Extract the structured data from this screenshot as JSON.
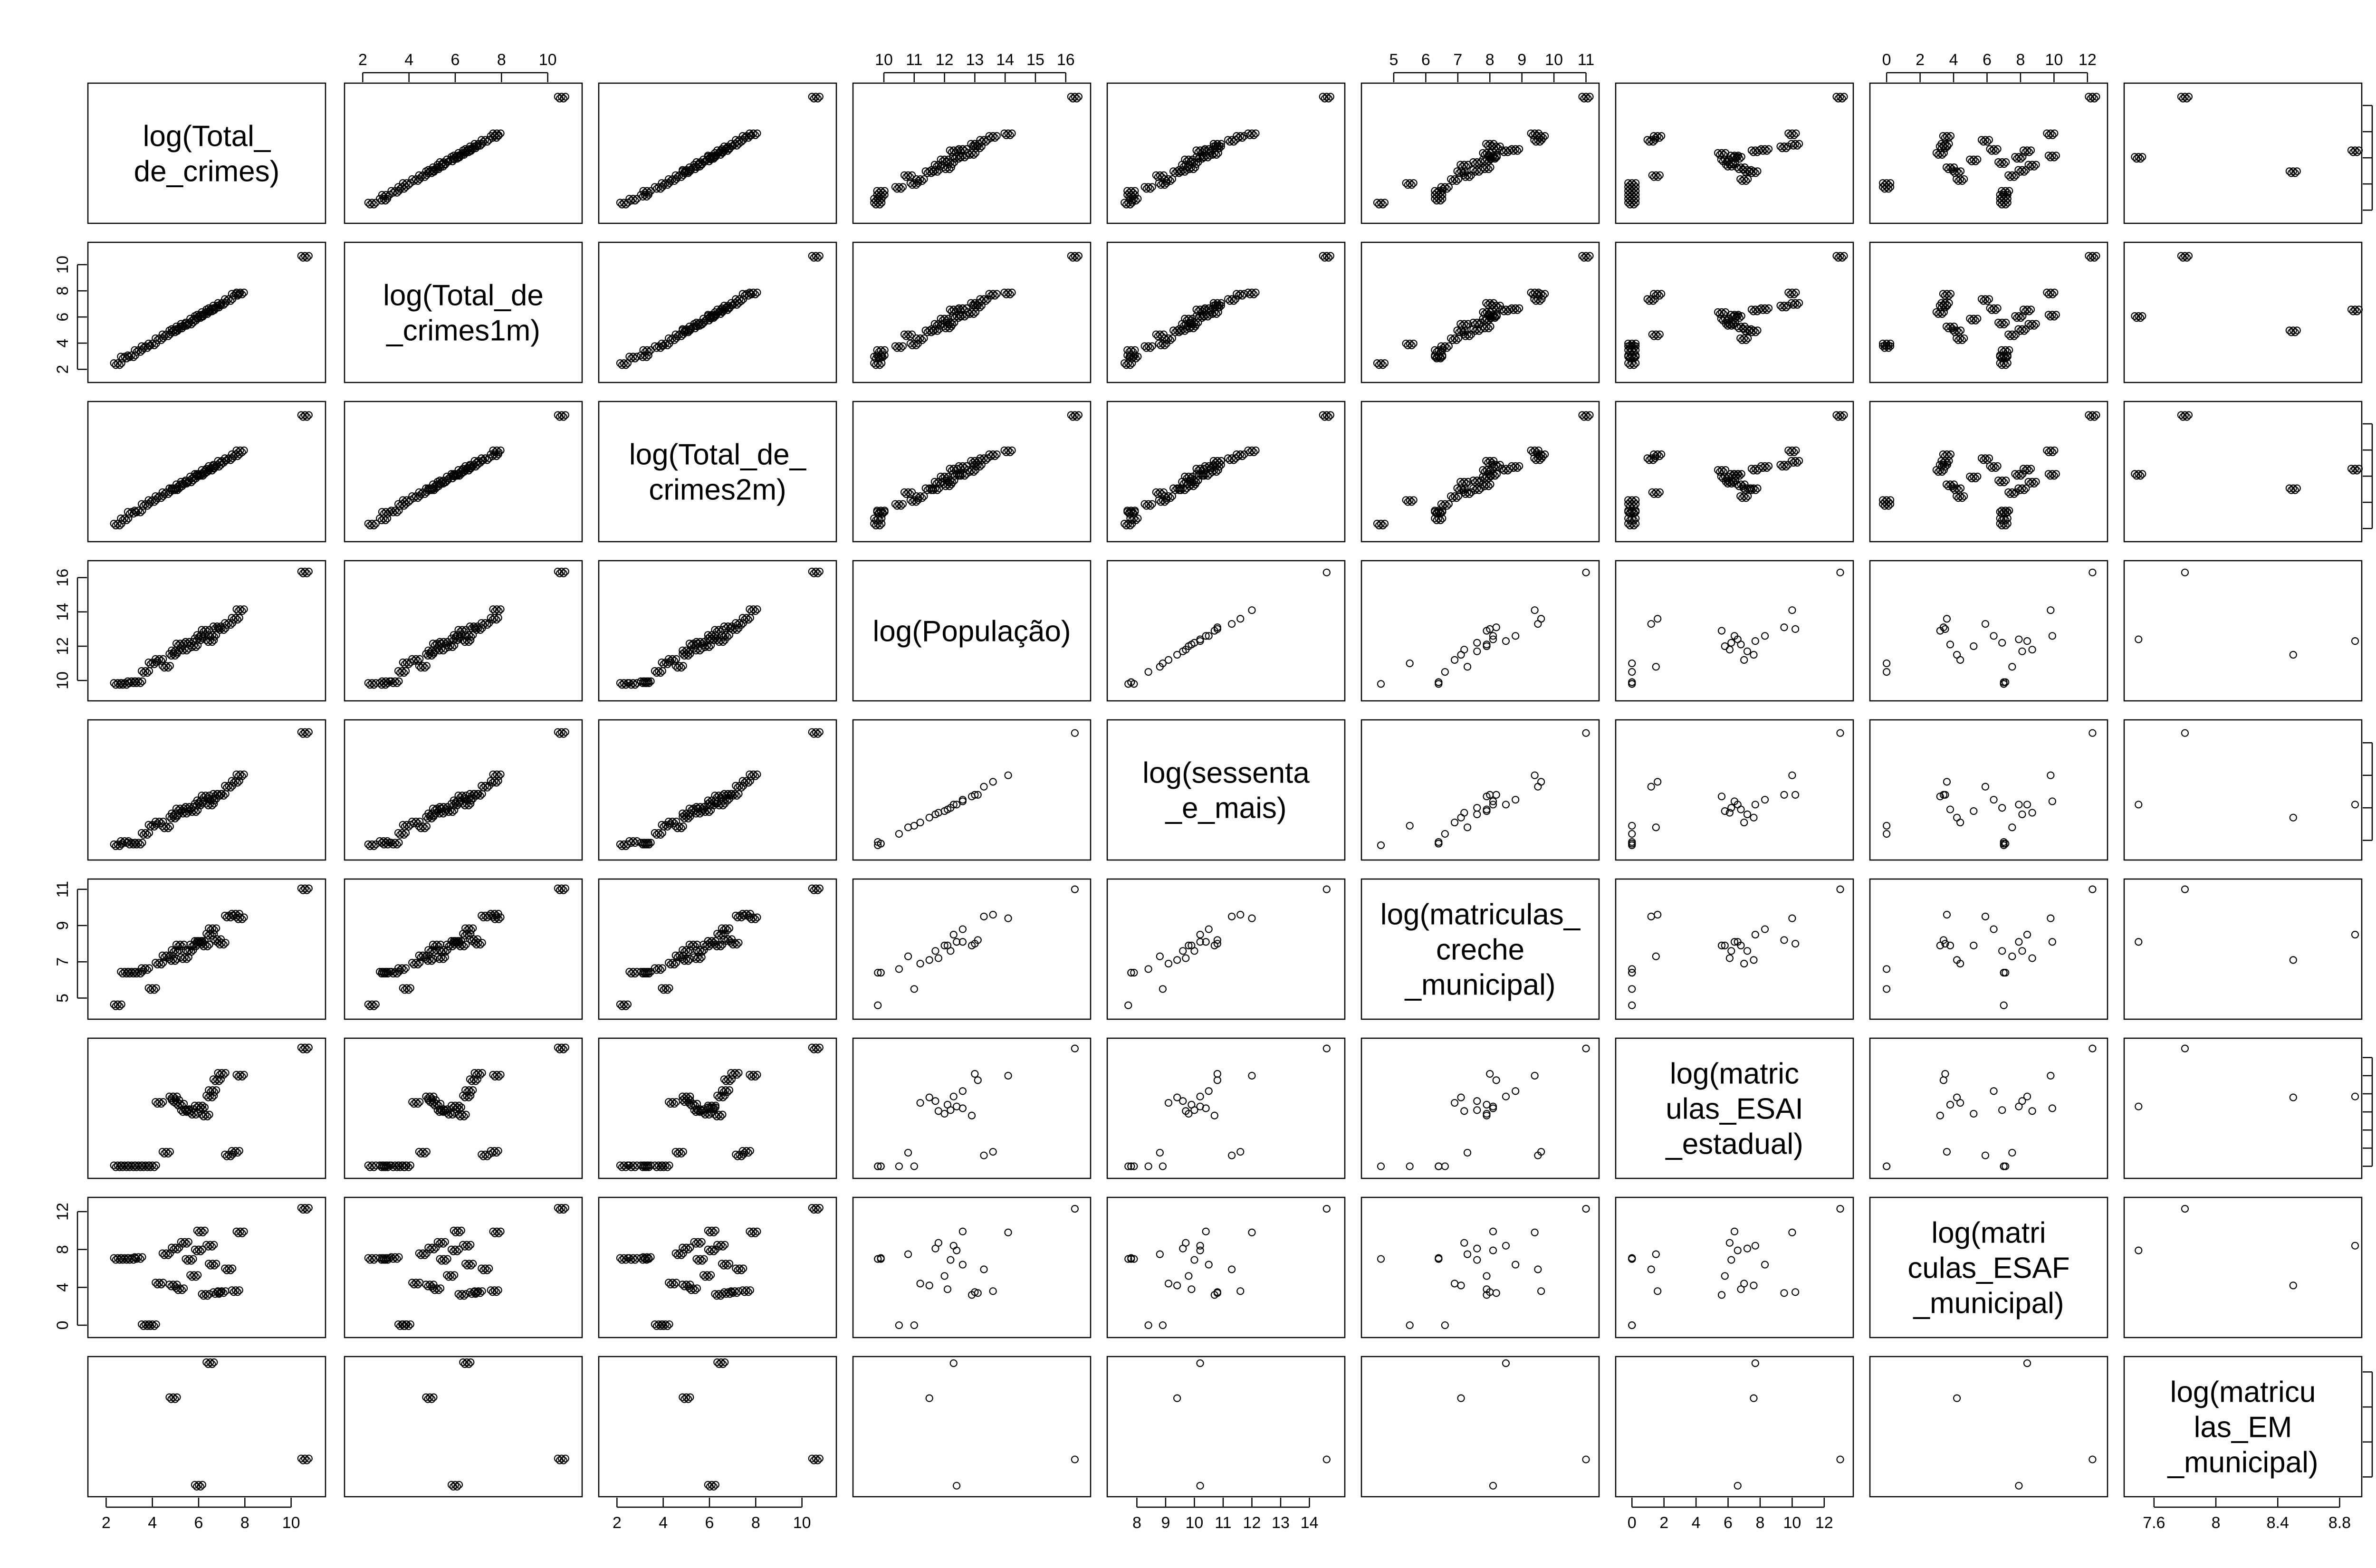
{
  "chart_data": {
    "type": "scatter",
    "title": "",
    "grid": false,
    "variables": [
      {
        "label": [
          "log(Total_",
          "de_crimes)"
        ],
        "range": [
          1.5,
          11.2
        ],
        "ticks": [
          2,
          4,
          6,
          8,
          10
        ]
      },
      {
        "label": [
          "log(Total_de",
          "_crimes1m)"
        ],
        "range": [
          1.5,
          11.2
        ],
        "ticks": [
          2,
          4,
          6,
          8,
          10
        ]
      },
      {
        "label": [
          "log(Total_de_",
          "crimes2m)"
        ],
        "range": [
          1.5,
          11.2
        ],
        "ticks": [
          2,
          4,
          6,
          8,
          10
        ]
      },
      {
        "label": [
          "log(População)"
        ],
        "range": [
          9.2,
          16.6
        ],
        "ticks": [
          10,
          11,
          12,
          13,
          14,
          15,
          16
        ]
      },
      {
        "label": [
          "log(sessenta",
          "_e_mais)"
        ],
        "range": [
          7.2,
          15.0
        ],
        "ticks": [
          8,
          9,
          10,
          11,
          12,
          13,
          14
        ]
      },
      {
        "label": [
          "log(matriculas_",
          "creche",
          "_municipal)"
        ],
        "range": [
          4.2,
          11.2
        ],
        "ticks": [
          5,
          6,
          7,
          8,
          9,
          10,
          11
        ]
      },
      {
        "label": [
          "log(matric",
          "ulas_ESAI",
          "_estadual)"
        ],
        "range": [
          -0.6,
          13.4
        ],
        "ticks": [
          0,
          2,
          4,
          6,
          8,
          10,
          12
        ]
      },
      {
        "label": [
          "log(matri",
          "culas_ESAF",
          "_municipal)"
        ],
        "range": [
          -0.6,
          12.8
        ],
        "ticks": [
          0,
          2,
          4,
          6,
          8,
          10,
          12
        ]
      },
      {
        "label": [
          "log(matricu",
          "las_EM",
          "_municipal)"
        ],
        "range": [
          7.45,
          8.9
        ],
        "ticks": [
          7.6,
          8.0,
          8.4,
          8.8
        ]
      }
    ],
    "axes": {
      "top": [
        {
          "column": 2,
          "ticks": [
            2,
            4,
            6,
            8,
            10
          ]
        },
        {
          "column": 4,
          "ticks": [
            10,
            11,
            12,
            13,
            14,
            15,
            16
          ]
        },
        {
          "column": 6,
          "ticks": [
            5,
            6,
            7,
            8,
            9,
            10,
            11
          ]
        },
        {
          "column": 8,
          "ticks": [
            0,
            2,
            4,
            6,
            8,
            10,
            12
          ]
        }
      ],
      "bottom": [
        {
          "column": 1,
          "ticks": [
            2,
            4,
            6,
            8,
            10
          ]
        },
        {
          "column": 3,
          "ticks": [
            2,
            4,
            6,
            8,
            10
          ]
        },
        {
          "column": 5,
          "ticks": [
            8,
            9,
            10,
            11,
            12,
            13,
            14
          ]
        },
        {
          "column": 7,
          "ticks": [
            0,
            2,
            4,
            6,
            8,
            10,
            12
          ]
        },
        {
          "column": 9,
          "ticks": [
            7.6,
            8.0,
            8.4,
            8.8
          ]
        }
      ],
      "left": [
        {
          "row": 2,
          "ticks": [
            2,
            4,
            6,
            8,
            10
          ]
        },
        {
          "row": 4,
          "ticks": [
            10,
            12,
            14,
            16
          ]
        },
        {
          "row": 6,
          "ticks": [
            5,
            7,
            9,
            11
          ]
        },
        {
          "row": 8,
          "ticks": [
            0,
            4,
            8,
            12
          ]
        }
      ],
      "right": [
        {
          "row": 1,
          "ticks": [
            2,
            4,
            6,
            8,
            10
          ]
        },
        {
          "row": 3,
          "ticks": [
            2,
            4,
            6,
            8,
            10
          ]
        },
        {
          "row": 5,
          "ticks": [
            8,
            10,
            12,
            14
          ]
        },
        {
          "row": 7,
          "ticks": [
            0,
            2,
            4,
            6,
            8,
            10,
            12
          ]
        },
        {
          "row": 9,
          "ticks": [
            7.6,
            8.0,
            8.4,
            8.8
          ]
        }
      ]
    },
    "observations": [
      [
        2.5,
        2.4,
        2.3,
        9.8,
        7.7,
        4.6,
        0.0,
        7.0,
        null
      ],
      [
        2.8,
        2.9,
        2.7,
        9.8,
        7.9,
        6.4,
        0.0,
        7.0,
        null
      ],
      [
        3.1,
        3.0,
        3.2,
        9.9,
        7.8,
        6.4,
        0.0,
        7.0,
        null
      ],
      [
        3.4,
        3.4,
        3.3,
        9.9,
        7.8,
        6.4,
        0.0,
        7.1,
        null
      ],
      [
        3.7,
        3.7,
        3.8,
        10.5,
        8.4,
        6.6,
        0.0,
        0.0,
        null
      ],
      [
        4.0,
        3.9,
        4.1,
        11.0,
        8.9,
        5.5,
        0.0,
        0.0,
        null
      ],
      [
        4.3,
        4.3,
        4.4,
        11.2,
        9.1,
        6.9,
        7.0,
        4.4,
        null
      ],
      [
        4.6,
        4.6,
        4.7,
        10.8,
        8.8,
        7.3,
        1.5,
        7.5,
        null
      ],
      [
        4.9,
        4.9,
        5.0,
        11.5,
        9.4,
        7.1,
        7.6,
        4.2,
        8.5
      ],
      [
        5.0,
        5.0,
        5.0,
        11.7,
        9.6,
        7.6,
        7.2,
        8.1,
        null
      ],
      [
        5.2,
        5.2,
        5.3,
        12.1,
        9.9,
        7.9,
        6.8,
        3.8,
        null
      ],
      [
        5.4,
        5.4,
        5.5,
        11.8,
        9.7,
        7.2,
        6.1,
        8.7,
        null
      ],
      [
        5.6,
        5.5,
        5.6,
        12.2,
        10.0,
        7.6,
        6.2,
        6.9,
        null
      ],
      [
        5.8,
        5.8,
        5.9,
        12.0,
        9.8,
        7.9,
        5.8,
        5.2,
        null
      ],
      [
        6.0,
        6.0,
        6.1,
        12.4,
        10.2,
        8.1,
        6.6,
        7.9,
        7.5
      ],
      [
        6.1,
        6.1,
        6.1,
        12.6,
        10.4,
        8.1,
        6.4,
        9.9,
        null
      ],
      [
        6.3,
        6.3,
        6.4,
        12.9,
        10.7,
        7.9,
        5.6,
        3.2,
        null
      ],
      [
        6.5,
        6.5,
        6.5,
        12.3,
        10.2,
        8.5,
        7.7,
        8.4,
        8.9
      ],
      [
        6.6,
        6.6,
        6.7,
        12.6,
        10.5,
        8.8,
        8.3,
        6.4,
        null
      ],
      [
        6.8,
        6.8,
        6.8,
        13.1,
        10.8,
        8.2,
        9.5,
        3.4,
        null
      ],
      [
        7.0,
        7.0,
        7.1,
        13.0,
        10.8,
        8.0,
        10.2,
        3.5,
        null
      ],
      [
        7.3,
        7.3,
        7.3,
        13.3,
        11.3,
        9.5,
        1.2,
        5.9,
        null
      ],
      [
        7.6,
        7.7,
        7.6,
        13.6,
        11.6,
        9.6,
        1.6,
        3.6,
        null
      ],
      [
        7.8,
        7.8,
        7.9,
        14.1,
        12.0,
        9.4,
        10.0,
        9.8,
        null
      ],
      [
        10.6,
        10.6,
        10.6,
        16.3,
        14.6,
        11.0,
        13.0,
        12.3,
        7.8
      ]
    ]
  }
}
